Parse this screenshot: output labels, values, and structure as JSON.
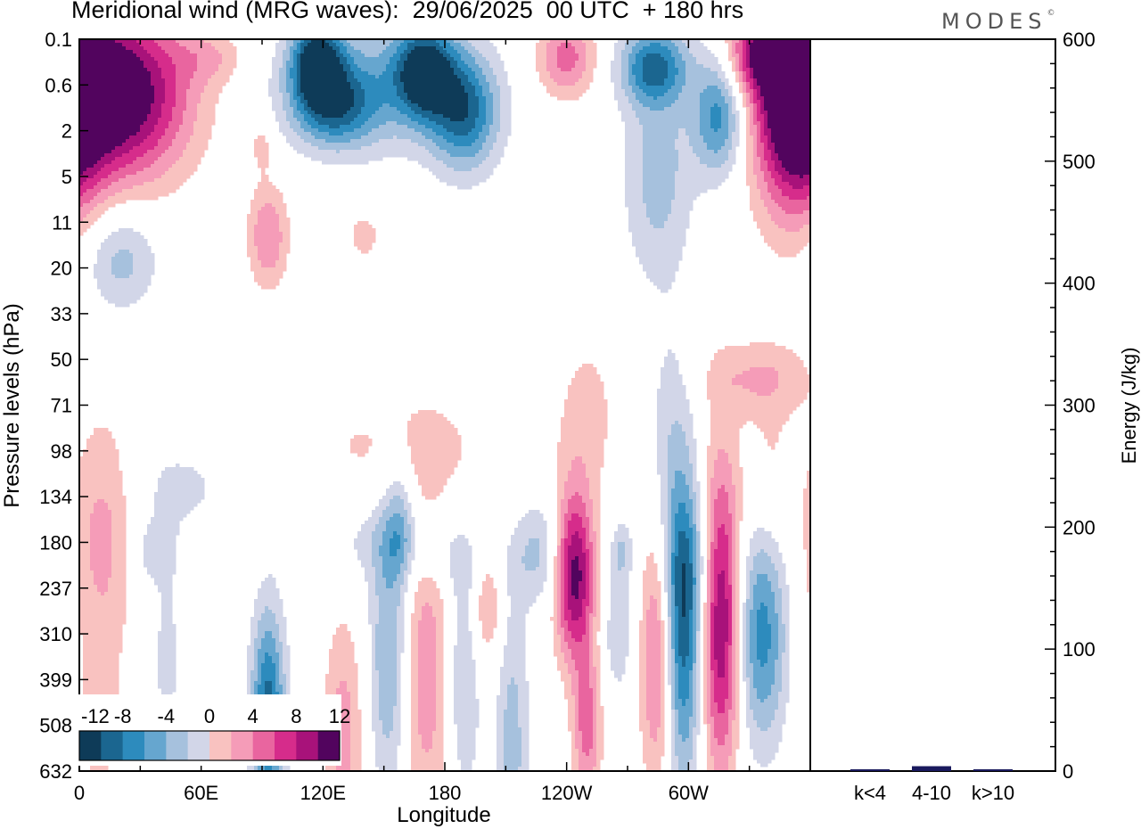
{
  "title": "Meridional wind (MRG waves):  29/06/2025  00 UTC  + 180 hrs",
  "logo": "MODES",
  "logo_mark": "©",
  "colors": {
    "neg": [
      "#0e3b58",
      "#1b6690",
      "#2d8bbd",
      "#66a6cf",
      "#a6c1dd",
      "#d2d6e8"
    ],
    "pos": [
      "#f9c2c0",
      "#f59cb8",
      "#e9659f",
      "#d62c8b",
      "#a8127a",
      "#52045e"
    ]
  },
  "chart_data": [
    {
      "type": "heatmap",
      "title": "Meridional wind (MRG waves):  29/06/2025  00 UTC  + 180 hrs",
      "xlabel": "Longitude",
      "ylabel": "Pressure levels (hPa)",
      "x_ticks": [
        "0",
        "60E",
        "120E",
        "180",
        "120W",
        "60W"
      ],
      "x_tick_degrees": [
        0,
        60,
        120,
        180,
        240,
        300
      ],
      "xlim": [
        0,
        360
      ],
      "y_ticks": [
        "0.1",
        "0.6",
        "2",
        "5",
        "11",
        "20",
        "33",
        "50",
        "71",
        "98",
        "134",
        "180",
        "237",
        "310",
        "399",
        "508",
        "632"
      ],
      "colorbar_labels": [
        "-12",
        "-8",
        "-4",
        "0",
        "4",
        "8",
        "12"
      ],
      "levels": [
        -14,
        -12,
        -10,
        -8,
        -6,
        -4,
        -2,
        2,
        4,
        6,
        8,
        10,
        12,
        14
      ],
      "features": [
        {
          "lon": 20,
          "lev": 1.2,
          "amp": 15,
          "dlon": 24,
          "dlev": 1.3
        },
        {
          "lon": 352,
          "lev": 1.3,
          "amp": 14,
          "dlon": 14,
          "dlev": 1.8
        },
        {
          "lon": 333,
          "lev": 0.3,
          "amp": 8,
          "dlon": 10,
          "dlev": 0.6
        },
        {
          "lon": 240,
          "lev": 0.4,
          "amp": 7,
          "dlon": 10,
          "dlev": 0.6
        },
        {
          "lon": 65,
          "lev": 0.4,
          "amp": 3,
          "dlon": 12,
          "dlev": 0.4
        },
        {
          "lon": 93,
          "lev": 4.3,
          "amp": 6,
          "dlon": 7,
          "dlev": 0.8
        },
        {
          "lon": 90,
          "lev": 2.3,
          "amp": 3,
          "dlon": 4,
          "dlev": 0.4
        },
        {
          "lon": 140,
          "lev": 4.3,
          "amp": 3,
          "dlon": 6,
          "dlev": 0.4
        },
        {
          "lon": 250,
          "lev": 8.2,
          "amp": 3,
          "dlon": 10,
          "dlev": 1.2
        },
        {
          "lon": 335,
          "lev": 7.4,
          "amp": 4,
          "dlon": 18,
          "dlev": 0.6
        },
        {
          "lon": 160,
          "lev": 8.9,
          "amp": 2.5,
          "dlon": 40,
          "dlev": 0.9
        },
        {
          "lon": 155,
          "lev": 11,
          "amp": -3,
          "dlon": 24,
          "dlev": 0.6
        },
        {
          "lon": 20,
          "lev": 4.8,
          "amp": -5,
          "dlon": 13,
          "dlev": 0.8
        },
        {
          "lon": 117,
          "lev": 0.5,
          "amp": -13,
          "dlon": 9,
          "dlev": 0.6
        },
        {
          "lon": 170,
          "lev": 0.7,
          "amp": -12,
          "dlon": 10,
          "dlev": 0.7
        },
        {
          "lon": 190,
          "lev": 1.6,
          "amp": -10,
          "dlon": 12,
          "dlev": 0.9
        },
        {
          "lon": 125,
          "lev": 1.5,
          "amp": -8,
          "dlon": 14,
          "dlev": 0.6
        },
        {
          "lon": 145,
          "lev": 1.0,
          "amp": -6,
          "dlon": 30,
          "dlev": 1.0
        },
        {
          "lon": 283,
          "lev": 0.6,
          "amp": -10,
          "dlon": 12,
          "dlev": 0.6
        },
        {
          "lon": 315,
          "lev": 1.7,
          "amp": -9,
          "dlon": 9,
          "dlev": 0.9
        },
        {
          "lon": 285,
          "lev": 3.0,
          "amp": -5,
          "dlon": 12,
          "dlev": 1.6
        },
        {
          "lon": 303,
          "lev": 11.5,
          "amp": -2.5,
          "dlon": 10,
          "dlev": 1.0
        },
        {
          "lon": 50,
          "lev": 9.8,
          "amp": -2.5,
          "dlon": 20,
          "dlev": 0.7
        },
        {
          "lon": 35,
          "lev": 11.2,
          "amp": -3,
          "dlon": 8,
          "dlev": 0.5
        },
        {
          "lon": 195,
          "lev": 11.5,
          "amp": -2.5,
          "dlon": 14,
          "dlev": 0.5
        },
        {
          "lon": 12,
          "lev": 10.5,
          "amp": 4,
          "dlon": 12,
          "dlev": 1.6
        },
        {
          "lon": 10,
          "lev": 14.5,
          "amp": 2.6,
          "dlon": 10,
          "dlev": 2.5
        },
        {
          "lon": 93,
          "lev": 14.7,
          "amp": -11,
          "dlon": 6,
          "dlev": 1.6
        },
        {
          "lon": 43,
          "lev": 13.5,
          "amp": -2.5,
          "dlon": 7,
          "dlev": 1.8
        },
        {
          "lon": 130,
          "lev": 15.2,
          "amp": 5,
          "dlon": 7,
          "dlev": 1.8
        },
        {
          "lon": 153,
          "lev": 13.5,
          "amp": -7,
          "dlon": 7,
          "dlev": 2.2
        },
        {
          "lon": 158,
          "lev": 10.5,
          "amp": -4,
          "dlon": 5,
          "dlev": 1.0
        },
        {
          "lon": 170,
          "lev": 13.8,
          "amp": 5.5,
          "dlon": 10,
          "dlev": 2.5
        },
        {
          "lon": 189,
          "lev": 14.0,
          "amp": -5,
          "dlon": 6,
          "dlev": 1.8
        },
        {
          "lon": 201,
          "lev": 12.0,
          "amp": 5,
          "dlon": 6,
          "dlev": 1.2
        },
        {
          "lon": 227,
          "lev": 11.2,
          "amp": -4.5,
          "dlon": 8,
          "dlev": 0.8
        },
        {
          "lon": 213,
          "lev": 15.5,
          "amp": -5,
          "dlon": 6,
          "dlev": 2.6
        },
        {
          "lon": 244,
          "lev": 11.7,
          "amp": 13,
          "dlon": 7,
          "dlev": 1.3
        },
        {
          "lon": 250,
          "lev": 15.0,
          "amp": 7,
          "dlon": 5,
          "dlev": 1.2
        },
        {
          "lon": 265,
          "lev": 13.0,
          "amp": -3.5,
          "dlon": 6,
          "dlev": 1.0
        },
        {
          "lon": 267,
          "lev": 11.2,
          "amp": -4,
          "dlon": 4,
          "dlev": 0.5
        },
        {
          "lon": 285,
          "lev": 13.5,
          "amp": 8,
          "dlon": 6,
          "dlev": 2.0
        },
        {
          "lon": 297,
          "lev": 12.8,
          "amp": -12,
          "dlon": 7,
          "dlev": 2.4
        },
        {
          "lon": 316,
          "lev": 12.6,
          "amp": 13,
          "dlon": 7,
          "dlev": 2.4
        },
        {
          "lon": 336,
          "lev": 13.0,
          "amp": -9,
          "dlon": 9,
          "dlev": 1.7
        },
        {
          "lon": 340,
          "lev": 9.5,
          "amp": 2.5,
          "dlon": 8,
          "dlev": 1.2
        },
        {
          "lon": 290,
          "lev": 8.6,
          "amp": -2.5,
          "dlon": 8,
          "dlev": 1.8
        }
      ]
    },
    {
      "type": "bar",
      "categories": [
        "k<4",
        "4-10",
        "k>10"
      ],
      "values": [
        1,
        4,
        1
      ],
      "ylabel": "Energy (J/kg)",
      "ylim": [
        0,
        600
      ],
      "y_ticks": [
        "0",
        "100",
        "200",
        "300",
        "400",
        "500",
        "600"
      ]
    }
  ]
}
